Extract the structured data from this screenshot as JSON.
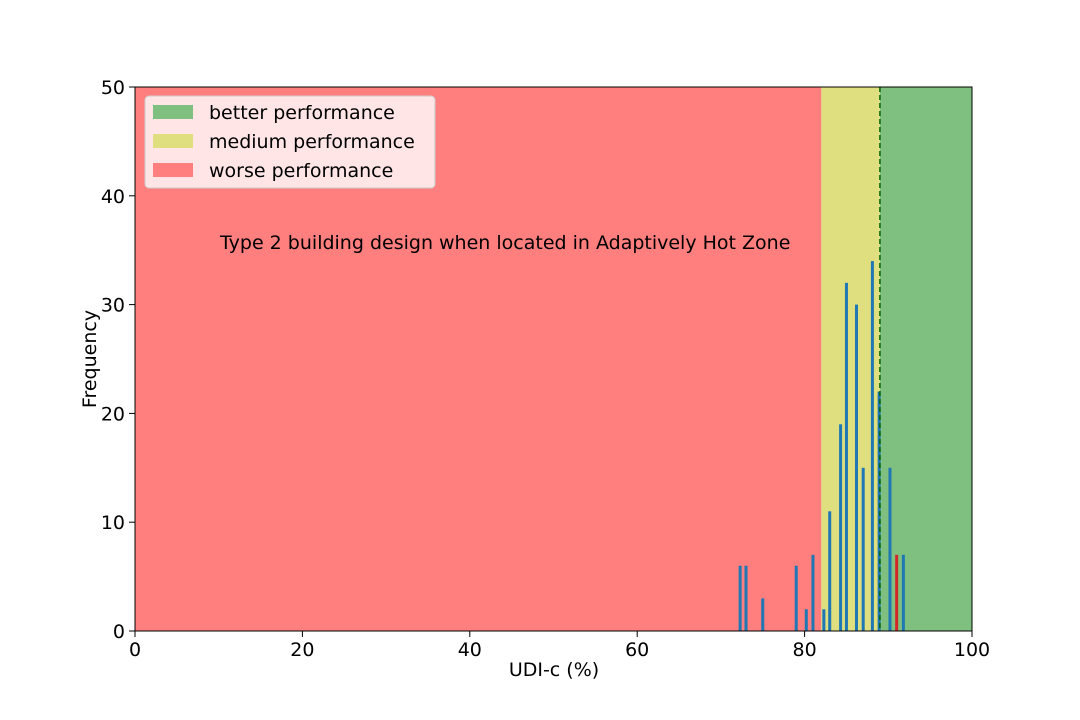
{
  "chart_data": {
    "type": "bar",
    "title": "",
    "annotation": "Type 2 building design when located in Adaptively Hot Zone",
    "xlabel": "UDI-c (%)",
    "ylabel": "Frequency",
    "xlim": [
      0,
      100
    ],
    "ylim": [
      0,
      50
    ],
    "xticks": [
      0,
      20,
      40,
      60,
      80,
      100
    ],
    "yticks": [
      0,
      10,
      20,
      30,
      40,
      50
    ],
    "grid": false,
    "legend": {
      "placement": "top-left",
      "entries": [
        {
          "label": "better performance",
          "color": "#7fbf7f"
        },
        {
          "label": "medium performance",
          "color": "#dfdf7f"
        },
        {
          "label": "worse performance",
          "color": "#ff7f7f"
        }
      ]
    },
    "regions": [
      {
        "name": "worse performance",
        "x_start": 0,
        "x_end": 82,
        "color": "#ff7f7f"
      },
      {
        "name": "medium performance",
        "x_start": 82,
        "x_end": 89,
        "color": "#dfdf7f"
      },
      {
        "name": "better performance",
        "x_start": 89,
        "x_end": 100,
        "color": "#7fbf7f"
      }
    ],
    "threshold_line": {
      "x": 89,
      "color": "#006400",
      "style": "dashed"
    },
    "bar_color": "#1f77b4",
    "highlight_color": "#d62728",
    "bars": [
      {
        "x": 72.3,
        "value": 6
      },
      {
        "x": 73.0,
        "value": 6
      },
      {
        "x": 75.0,
        "value": 3
      },
      {
        "x": 79.0,
        "value": 6
      },
      {
        "x": 80.2,
        "value": 2
      },
      {
        "x": 81.0,
        "value": 7
      },
      {
        "x": 82.3,
        "value": 2
      },
      {
        "x": 83.0,
        "value": 11
      },
      {
        "x": 84.3,
        "value": 19
      },
      {
        "x": 85.0,
        "value": 32
      },
      {
        "x": 86.2,
        "value": 30
      },
      {
        "x": 87.0,
        "value": 15
      },
      {
        "x": 88.1,
        "value": 34
      },
      {
        "x": 88.9,
        "value": 22
      },
      {
        "x": 90.2,
        "value": 15
      },
      {
        "x": 91.0,
        "value": 7,
        "highlight": true
      },
      {
        "x": 91.8,
        "value": 7
      }
    ]
  }
}
